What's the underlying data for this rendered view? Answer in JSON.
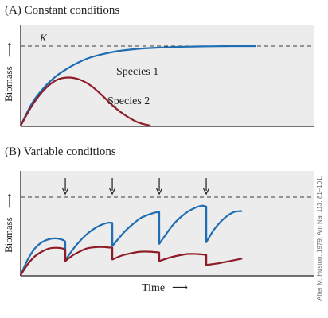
{
  "chart_data": [
    {
      "type": "line",
      "title": "(A) Constant conditions",
      "ylabel": "Biomass",
      "xlabel": "",
      "reference_line": {
        "label": "K",
        "y": 1.0,
        "style": "dashed"
      },
      "xlim": [
        0,
        100
      ],
      "ylim": [
        0,
        1.12
      ],
      "grid": false,
      "series": [
        {
          "name": "Species 1",
          "color": "#1f6db3",
          "x": [
            0,
            5,
            10,
            15,
            20,
            25,
            30,
            40,
            50,
            60,
            70,
            80,
            90,
            100
          ],
          "y": [
            0.0,
            0.29,
            0.48,
            0.62,
            0.72,
            0.8,
            0.86,
            0.93,
            0.965,
            0.982,
            0.992,
            0.997,
            1.0,
            1.0
          ]
        },
        {
          "name": "Species 2",
          "color": "#8e1c26",
          "x": [
            0,
            5,
            10,
            15,
            20,
            25,
            30,
            35,
            40,
            45,
            50,
            55
          ],
          "y": [
            0.0,
            0.26,
            0.45,
            0.57,
            0.605,
            0.58,
            0.5,
            0.37,
            0.23,
            0.12,
            0.04,
            0.0
          ]
        }
      ]
    },
    {
      "type": "line",
      "title": "(B) Variable conditions",
      "ylabel": "Biomass",
      "xlabel": "Time",
      "reference_line": {
        "label": "",
        "y": 1.0,
        "style": "dashed"
      },
      "disturbance_arrows_at_x": [
        19,
        39,
        59,
        79
      ],
      "xlim": [
        0,
        100
      ],
      "ylim": [
        0,
        1.12
      ],
      "grid": false,
      "series": [
        {
          "name": "",
          "color": "#1f6db3",
          "x": [
            0,
            3,
            6,
            9,
            12,
            15,
            18,
            19,
            19.01,
            22,
            25,
            28,
            31,
            34,
            37,
            39,
            39.01,
            42,
            45,
            48,
            51,
            54,
            57,
            59,
            59.01,
            62,
            65,
            68,
            71,
            74,
            77,
            79,
            79.01,
            82,
            85,
            88,
            91,
            94
          ],
          "y": [
            0.0,
            0.2,
            0.34,
            0.42,
            0.46,
            0.47,
            0.45,
            0.43,
            0.19,
            0.32,
            0.43,
            0.52,
            0.59,
            0.64,
            0.67,
            0.67,
            0.37,
            0.48,
            0.58,
            0.66,
            0.73,
            0.77,
            0.8,
            0.81,
            0.4,
            0.53,
            0.65,
            0.74,
            0.81,
            0.86,
            0.89,
            0.88,
            0.42,
            0.57,
            0.68,
            0.76,
            0.81,
            0.82
          ]
        },
        {
          "name": "",
          "color": "#8e1c26",
          "x": [
            0,
            3,
            6,
            9,
            12,
            15,
            18,
            19,
            19.01,
            22,
            25,
            28,
            31,
            34,
            37,
            39,
            39.01,
            43,
            47,
            51,
            55,
            59,
            59.01,
            63,
            67,
            71,
            75,
            79,
            79.01,
            84,
            89,
            94
          ],
          "y": [
            0.0,
            0.14,
            0.24,
            0.3,
            0.34,
            0.35,
            0.34,
            0.32,
            0.18,
            0.25,
            0.3,
            0.34,
            0.355,
            0.36,
            0.355,
            0.35,
            0.2,
            0.25,
            0.28,
            0.3,
            0.3,
            0.29,
            0.18,
            0.22,
            0.25,
            0.27,
            0.27,
            0.26,
            0.13,
            0.15,
            0.18,
            0.21
          ]
        }
      ]
    }
  ],
  "labels": {
    "species1": "Species 1",
    "species2": "Species 2",
    "credit": "After M. Huston, 1979. Am Nat 113: 81–101."
  },
  "colors": {
    "panel_background": "#ececec",
    "axis": "#231f20",
    "dash": "#3a3a3a"
  }
}
